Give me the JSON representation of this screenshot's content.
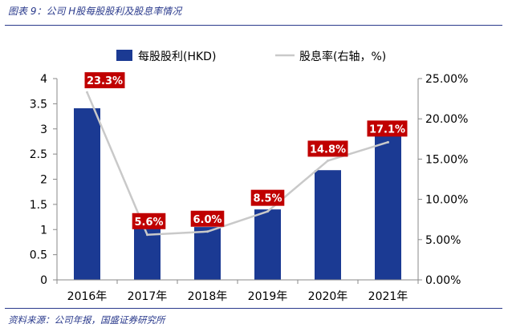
{
  "figure": {
    "title": "图表 9：公司 H股每股股利及股息率情况",
    "source": "资料来源：公司年报，国盛证券研究所"
  },
  "colors": {
    "bar": "#1b3a93",
    "line": "#c9c9c9",
    "label_bg": "#c00000",
    "label_text": "#ffffff",
    "rule": "#2a3a8c"
  },
  "chart_data": {
    "type": "bar",
    "categories": [
      "2016年",
      "2017年",
      "2018年",
      "2019年",
      "2020年",
      "2021年"
    ],
    "series": [
      {
        "name": "每股股利(HKD)",
        "type": "bar",
        "axis": "left",
        "values": [
          3.41,
          1.14,
          1.05,
          1.4,
          2.18,
          3.14
        ]
      },
      {
        "name": "股息率(右轴，%)",
        "type": "line",
        "axis": "right",
        "values": [
          23.3,
          5.6,
          6.0,
          8.5,
          14.8,
          17.1
        ]
      }
    ],
    "data_labels": [
      "23.3%",
      "5.6%",
      "6.0%",
      "8.5%",
      "14.8%",
      "17.1%"
    ],
    "y_left": {
      "min": 0,
      "max": 4,
      "ticks": [
        "0",
        "0.5",
        "1",
        "1.5",
        "2",
        "2.5",
        "3",
        "3.5",
        "4"
      ]
    },
    "y_right": {
      "min": 0,
      "max": 25,
      "ticks": [
        "0.00%",
        "5.00%",
        "10.00%",
        "15.00%",
        "20.00%",
        "25.00%"
      ]
    },
    "legend_position": "top",
    "grid": false
  }
}
